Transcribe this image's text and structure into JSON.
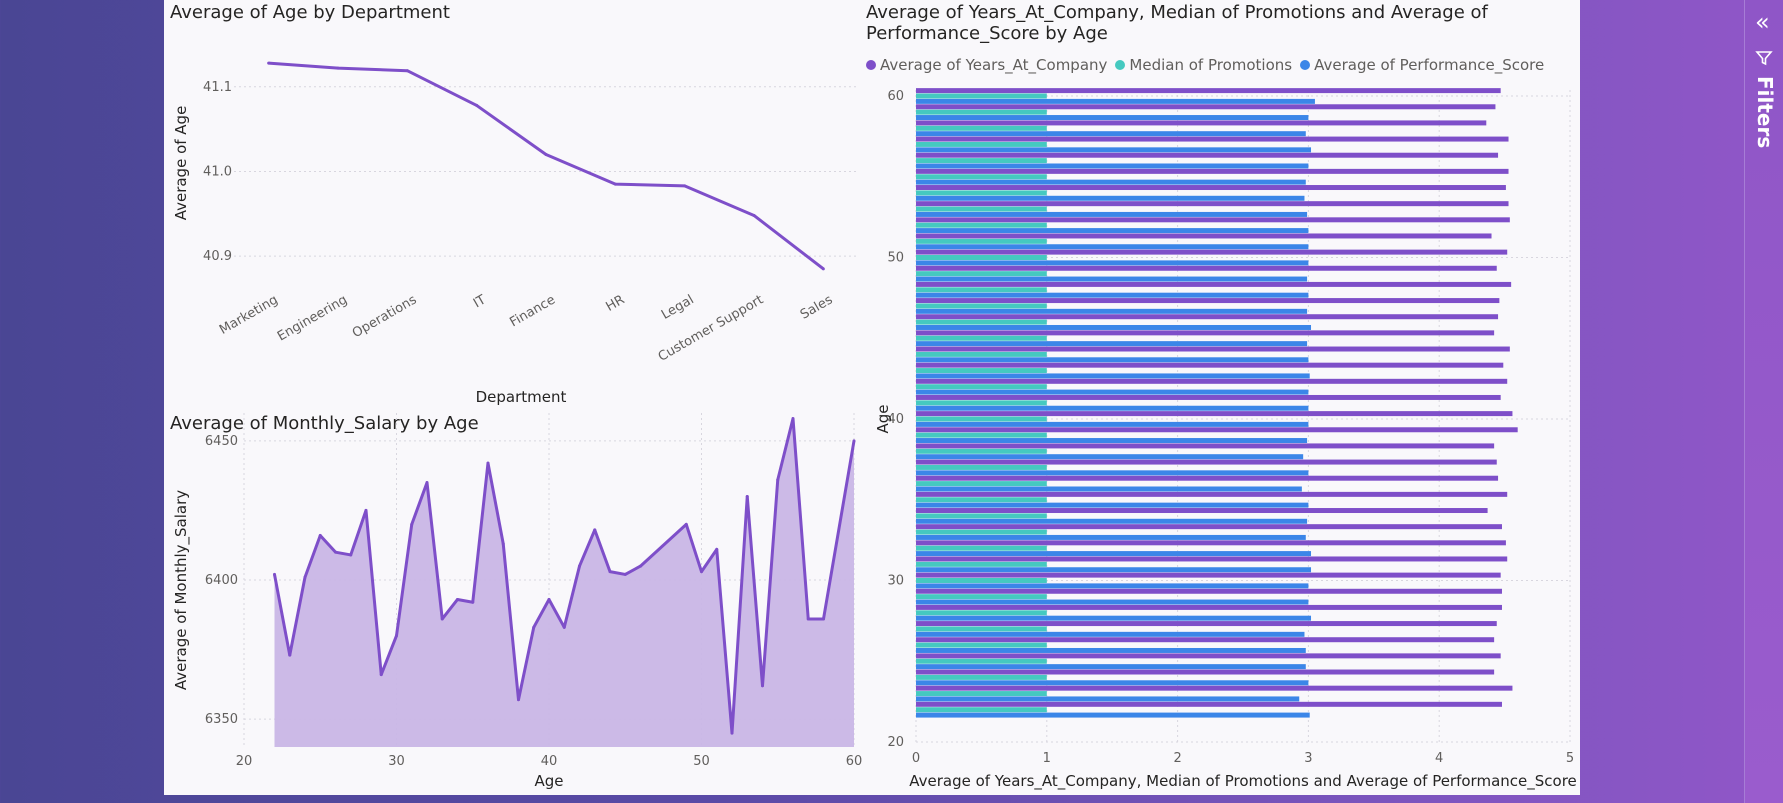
{
  "filters_pane": {
    "label": "Filters",
    "collapse_icon": "double-chevron-left-icon",
    "filter_icon": "funnel-icon"
  },
  "colors": {
    "purple": "#7e4fc9",
    "teal": "#45c9c0",
    "blue": "#3b86e8",
    "area_fill": "#c9b6e6"
  },
  "chart_data": [
    {
      "type": "line",
      "title": "Average of Age by Department",
      "xlabel": "Department",
      "ylabel": "Average of Age",
      "categories": [
        "Marketing",
        "Engineering",
        "Operations",
        "IT",
        "Finance",
        "HR",
        "Legal",
        "Customer Support",
        "Sales"
      ],
      "values": [
        41.128,
        41.122,
        41.119,
        41.078,
        41.02,
        40.985,
        40.983,
        40.948,
        40.885
      ],
      "yticks": [
        "40.9",
        "41.0",
        "41.1"
      ],
      "ylim": [
        40.86,
        41.16
      ],
      "grid": true
    },
    {
      "type": "area",
      "title": "Average of Monthly_Salary by Age",
      "xlabel": "Age",
      "ylabel": "Average of Monthly_Salary",
      "xticks": [
        "20",
        "30",
        "40",
        "50",
        "60"
      ],
      "yticks": [
        "6350",
        "6400",
        "6450"
      ],
      "xlim": [
        20,
        60
      ],
      "ylim": [
        6340,
        6460
      ],
      "x": [
        22,
        23,
        24,
        25,
        26,
        27,
        28,
        29,
        30,
        31,
        32,
        33,
        34,
        35,
        36,
        37,
        38,
        39,
        40,
        41,
        42,
        43,
        44,
        45,
        46,
        49,
        50,
        51,
        52,
        53,
        54,
        55,
        56,
        57,
        58,
        60
      ],
      "y": [
        6402,
        6373,
        6401,
        6416,
        6410,
        6409,
        6425,
        6366,
        6380,
        6420,
        6435,
        6386,
        6393,
        6392,
        6442,
        6413,
        6357,
        6383,
        6393,
        6383,
        6405,
        6418,
        6403,
        6402,
        6405,
        6420,
        6403,
        6411,
        6345,
        6430,
        6362,
        6436,
        6458,
        6386,
        6386,
        6450
      ],
      "grid": true
    },
    {
      "type": "bar",
      "orientation": "horizontal",
      "title": "Average of Years_At_Company, Median of Promotions and Average of\nPerformance_Score by Age",
      "xlabel": "Average of Years_At_Company, Median of Promotions and Average of Performance_Score",
      "ylabel": "Age",
      "xticks": [
        "0",
        "1",
        "2",
        "3",
        "4",
        "5"
      ],
      "yticks": [
        "20",
        "30",
        "40",
        "50",
        "60"
      ],
      "xlim": [
        0,
        5
      ],
      "ylim": [
        20,
        60
      ],
      "legend_position": "top-left",
      "categories": [
        22,
        23,
        24,
        25,
        26,
        27,
        28,
        29,
        30,
        31,
        32,
        33,
        34,
        35,
        36,
        37,
        38,
        39,
        40,
        41,
        42,
        43,
        44,
        45,
        46,
        47,
        48,
        49,
        50,
        51,
        52,
        53,
        54,
        55,
        56,
        57,
        58,
        59,
        60
      ],
      "series": [
        {
          "name": "Average of Years_At_Company",
          "color": "#7e4fc9",
          "values": [
            4.48,
            4.56,
            4.42,
            4.47,
            4.42,
            4.44,
            4.48,
            4.48,
            4.47,
            4.52,
            4.51,
            4.48,
            4.37,
            4.52,
            4.45,
            4.44,
            4.42,
            4.6,
            4.56,
            4.47,
            4.52,
            4.49,
            4.54,
            4.42,
            4.45,
            4.46,
            4.55,
            4.44,
            4.52,
            4.4,
            4.54,
            4.53,
            4.51,
            4.53,
            4.45,
            4.53,
            4.36,
            4.43,
            4.47
          ]
        },
        {
          "name": "Median of Promotions",
          "color": "#45c9c0",
          "values": [
            1,
            1,
            1,
            1,
            1,
            1,
            1,
            1,
            1,
            1,
            1,
            1,
            1,
            1,
            1,
            1,
            1,
            1,
            1,
            1,
            1,
            1,
            1,
            1,
            1,
            1,
            1,
            1,
            1,
            1,
            1,
            1,
            1,
            1,
            1,
            1,
            1,
            1,
            1
          ]
        },
        {
          "name": "Average of Performance_Score",
          "color": "#3b86e8",
          "values": [
            3.01,
            2.93,
            3.0,
            2.98,
            2.98,
            2.97,
            3.02,
            3.0,
            3.0,
            3.02,
            3.02,
            2.98,
            2.99,
            3.0,
            2.95,
            3.0,
            2.96,
            2.99,
            3.0,
            3.0,
            3.0,
            3.01,
            3.0,
            2.99,
            3.02,
            2.99,
            3.0,
            2.99,
            3.0,
            3.0,
            3.0,
            2.99,
            2.97,
            2.98,
            3.0,
            3.02,
            2.98,
            3.0,
            3.05
          ]
        }
      ],
      "grid": true
    }
  ]
}
